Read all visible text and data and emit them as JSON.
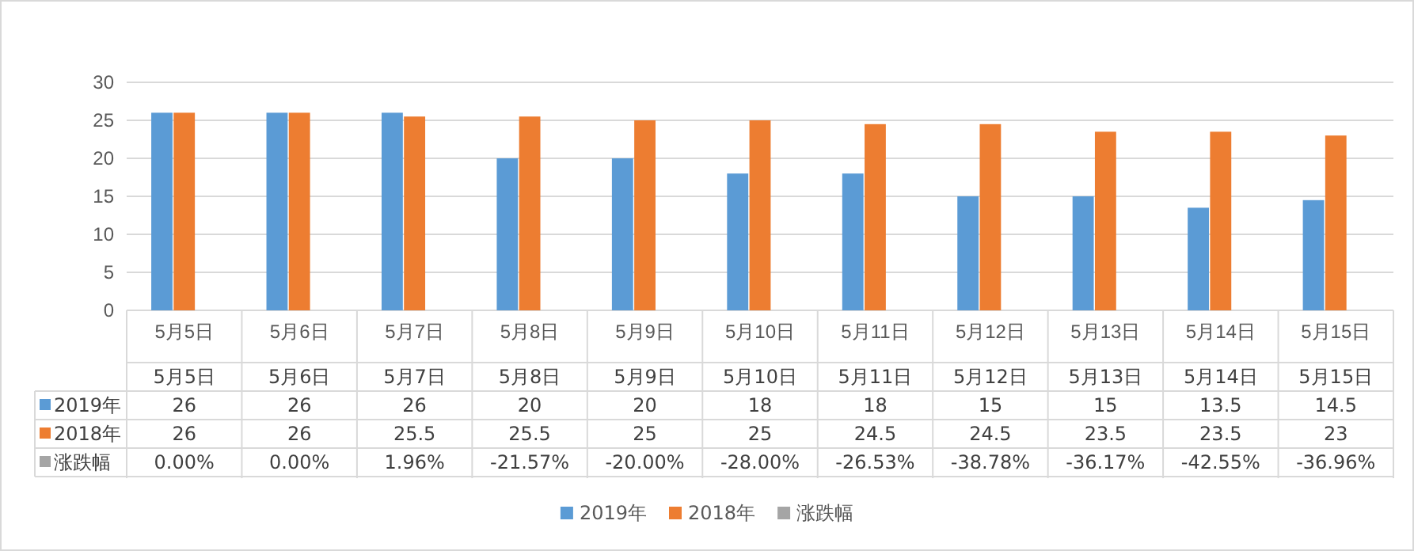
{
  "chart_data": {
    "type": "bar",
    "categories": [
      "5月5日",
      "5月6日",
      "5月7日",
      "5月8日",
      "5月9日",
      "5月10日",
      "5月11日",
      "5月12日",
      "5月13日",
      "5月14日",
      "5月15日"
    ],
    "series": [
      {
        "name": "2019年",
        "color": "#5b9bd5",
        "values": [
          26,
          26,
          26,
          20,
          20,
          18,
          18,
          15,
          15,
          13.5,
          14.5
        ]
      },
      {
        "name": "2018年",
        "color": "#ed7d31",
        "values": [
          26,
          26,
          25.5,
          25.5,
          25,
          25,
          24.5,
          24.5,
          23.5,
          23.5,
          23
        ]
      },
      {
        "name": "涨跌幅",
        "color": "#a5a5a5",
        "values": [
          null,
          null,
          null,
          null,
          null,
          null,
          null,
          null,
          null,
          null,
          null
        ],
        "value_labels": [
          "0.00%",
          "0.00%",
          "1.96%",
          "-21.57%",
          "-20.00%",
          "-28.00%",
          "-26.53%",
          "-38.78%",
          "-36.17%",
          "-42.55%",
          "-36.96%"
        ]
      }
    ],
    "ylim": [
      0,
      30
    ],
    "yticks": [
      0,
      5,
      10,
      15,
      20,
      25,
      30
    ],
    "grid": "y",
    "legend": "bottom",
    "data_labels": true
  }
}
